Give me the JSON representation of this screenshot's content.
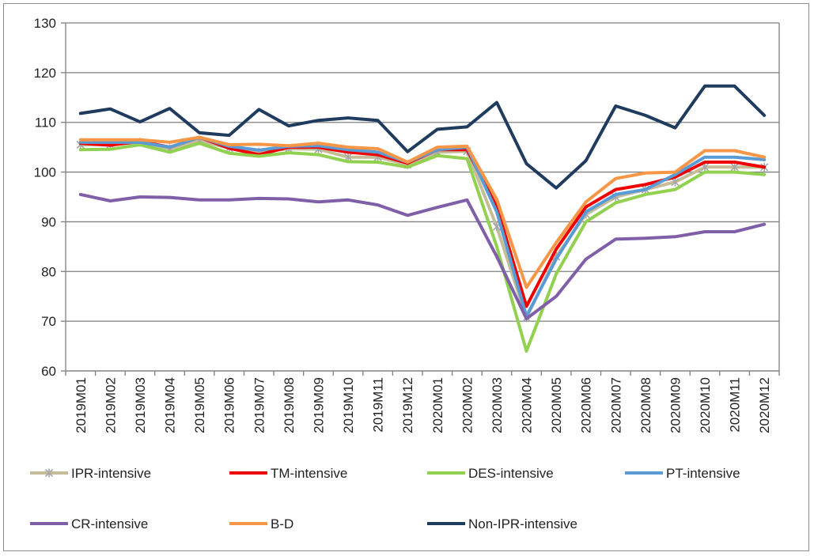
{
  "chart_data": {
    "type": "line",
    "title": "",
    "xlabel": "",
    "ylabel": "",
    "ylim": [
      60,
      130
    ],
    "yticks": [
      60,
      70,
      80,
      90,
      100,
      110,
      120,
      130
    ],
    "grid": "horizontal",
    "legend_position": "bottom",
    "categories": [
      "2019M01",
      "2019M02",
      "2019M03",
      "2019M04",
      "2019M05",
      "2019M06",
      "2019M07",
      "2019M08",
      "2019M09",
      "2019M10",
      "2019M11",
      "2019M12",
      "2020M01",
      "2020M02",
      "2020M03",
      "2020M04",
      "2020M05",
      "2020M06",
      "2020M07",
      "2020M08",
      "2020M09",
      "2020M10",
      "2020M11",
      "2020M12"
    ],
    "series": [
      {
        "name": "IPR-intensive",
        "color": "#c4bd97",
        "marker": "asterisk",
        "values": [
          105.5,
          105.5,
          106,
          104.7,
          106.3,
          104.8,
          104,
          104.7,
          104.6,
          103,
          103,
          101.5,
          104,
          104.2,
          89,
          70.7,
          83,
          91.5,
          95,
          96.5,
          98,
          101,
          101,
          101
        ]
      },
      {
        "name": "TM-intensive",
        "color": "#ee0000",
        "marker": "none",
        "values": [
          105.8,
          105.4,
          106.2,
          105,
          107,
          104.8,
          103.5,
          105,
          105,
          104,
          103.5,
          101.8,
          104.5,
          104.5,
          93,
          73,
          84.5,
          93,
          96.5,
          97.5,
          99,
          102,
          102,
          101
        ]
      },
      {
        "name": "DES-intensive",
        "color": "#92d050",
        "marker": "none",
        "values": [
          104.5,
          104.6,
          105.5,
          104,
          105.8,
          103.8,
          103.2,
          103.9,
          103.5,
          102.1,
          102,
          101,
          103.3,
          102.7,
          85,
          64,
          79.5,
          90,
          93.8,
          95.5,
          96.5,
          100,
          100,
          99.5
        ]
      },
      {
        "name": "PT-intensive",
        "color": "#5b9bd5",
        "marker": "none",
        "values": [
          106,
          106,
          106,
          105,
          107,
          105.2,
          104.4,
          105.2,
          105.3,
          104.5,
          104,
          102,
          104.5,
          105,
          92,
          71,
          82.5,
          92,
          95.5,
          96.5,
          99.5,
          103,
          103,
          102.5
        ]
      },
      {
        "name": "CR-intensive",
        "color": "#7f5fa8",
        "marker": "none",
        "values": [
          95.5,
          94.2,
          95,
          94.9,
          94.4,
          94.4,
          94.7,
          94.6,
          94,
          94.4,
          93.4,
          91.3,
          92.9,
          94.4,
          83,
          70.5,
          75,
          82.5,
          86.5,
          86.7,
          87,
          88,
          88,
          89.5
        ]
      },
      {
        "name": "B-D",
        "color": "#f79646",
        "marker": "none",
        "values": [
          106.5,
          106.5,
          106.5,
          106,
          107,
          105.5,
          105.6,
          105.3,
          105.8,
          105,
          104.7,
          102,
          105,
          105.2,
          94.5,
          76.8,
          85.8,
          94,
          98.7,
          99.8,
          100,
          104.3,
          104.3,
          103
        ]
      },
      {
        "name": "Non-IPR-intensive",
        "color": "#1f3b5e",
        "marker": "none",
        "values": [
          111.8,
          112.7,
          110.1,
          112.8,
          107.9,
          107.4,
          112.6,
          109.3,
          110.4,
          110.9,
          110.4,
          104.1,
          108.6,
          109.1,
          114,
          101.7,
          96.8,
          102.3,
          113.3,
          111.4,
          108.9,
          117.3,
          117.3,
          111.4
        ]
      }
    ]
  }
}
